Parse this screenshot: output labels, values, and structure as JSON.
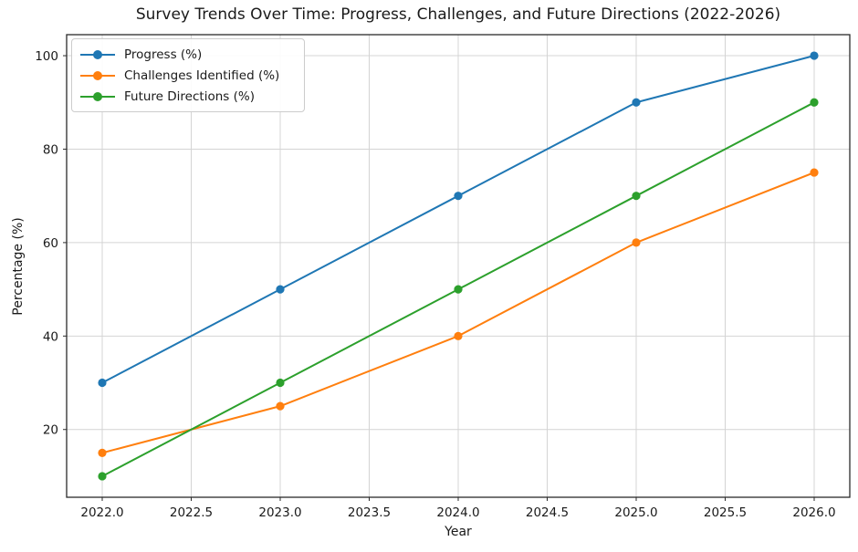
{
  "chart_data": {
    "type": "line",
    "title": "Survey Trends Over Time: Progress, Challenges, and Future Directions (2022-2026)",
    "xlabel": "Year",
    "ylabel": "Percentage (%)",
    "x": [
      2022,
      2023,
      2024,
      2025,
      2026
    ],
    "series": [
      {
        "name": "Progress (%)",
        "values": [
          30,
          50,
          70,
          90,
          100
        ],
        "color": "#1f77b4"
      },
      {
        "name": "Challenges Identified (%)",
        "values": [
          15,
          25,
          40,
          60,
          75
        ],
        "color": "#ff7f0e"
      },
      {
        "name": "Future Directions (%)",
        "values": [
          10,
          30,
          50,
          70,
          90
        ],
        "color": "#2ca02c"
      }
    ],
    "x_tick_values": [
      2022,
      2022.5,
      2023,
      2023.5,
      2024,
      2024.5,
      2025,
      2025.5,
      2026
    ],
    "x_tick_labels": [
      "2022.0",
      "2022.5",
      "2023.0",
      "2023.5",
      "2024.0",
      "2024.5",
      "2025.0",
      "2025.5",
      "2026.0"
    ],
    "y_tick_values": [
      20,
      40,
      60,
      80,
      100
    ],
    "y_tick_labels": [
      "20",
      "40",
      "60",
      "80",
      "100"
    ],
    "xlim": [
      2021.8,
      2026.2
    ],
    "ylim": [
      5.5,
      104.5
    ],
    "grid": true,
    "legend_position": "upper left",
    "colors": {
      "grid": "#d4d4d4",
      "spine": "#2b2b2b",
      "text": "#1a1a1a",
      "background": "#ffffff"
    }
  }
}
